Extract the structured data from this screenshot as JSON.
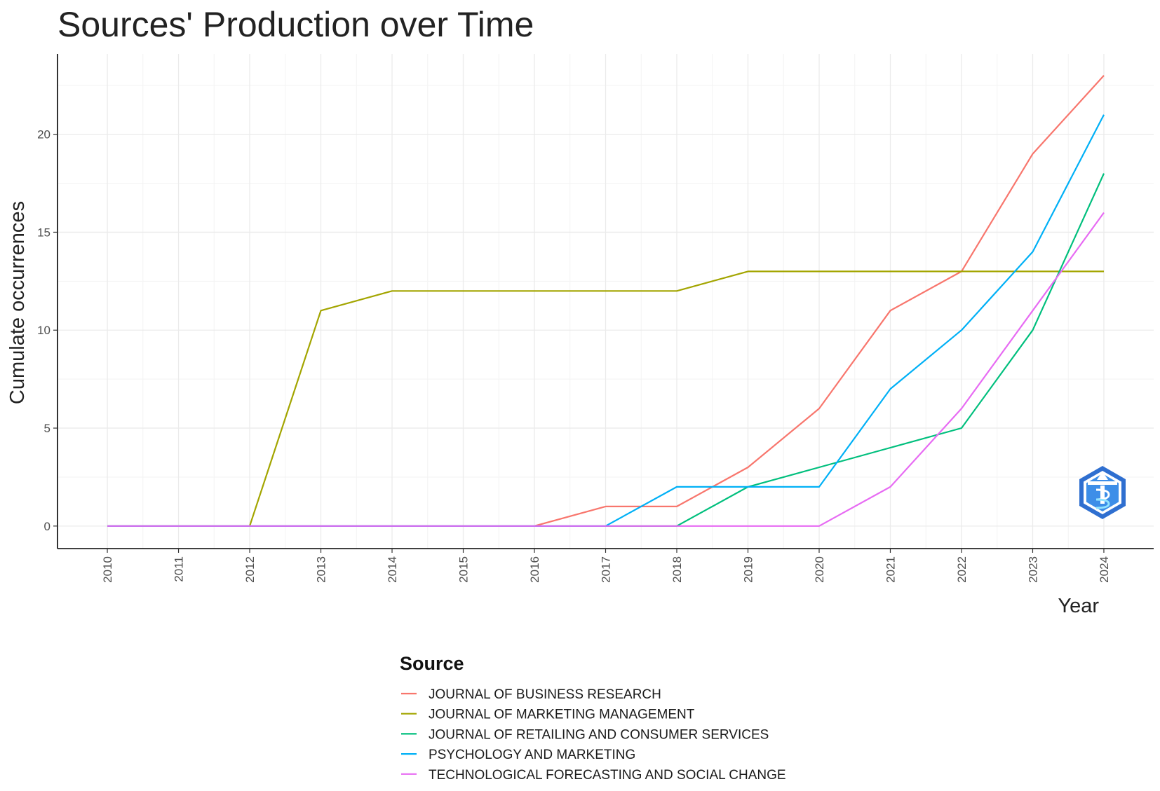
{
  "chart_data": {
    "type": "line",
    "title": "Sources' Production over Time",
    "xlabel": "Year",
    "ylabel": "Cumulate occurrences",
    "x": [
      2010,
      2011,
      2012,
      2013,
      2014,
      2015,
      2016,
      2017,
      2018,
      2019,
      2020,
      2021,
      2022,
      2023,
      2024
    ],
    "x_tick_labels": [
      "2010",
      "2011",
      "2012",
      "2013",
      "2014",
      "2015",
      "2016",
      "2017",
      "2018",
      "2019",
      "2020",
      "2021",
      "2022",
      "2023",
      "2024"
    ],
    "y_ticks": [
      0,
      5,
      10,
      15,
      20
    ],
    "y_tick_labels": [
      "0",
      "5",
      "10",
      "15",
      "20"
    ],
    "xlim": [
      2009.3,
      2024.7
    ],
    "ylim": [
      -1.15,
      24.1
    ],
    "grid": true,
    "legend": {
      "title": "Source",
      "placement": "bottom"
    },
    "series": [
      {
        "name": "JOURNAL OF BUSINESS RESEARCH",
        "color": "#F8766D",
        "values": [
          0,
          0,
          0,
          0,
          0,
          0,
          0,
          1,
          1,
          3,
          6,
          11,
          13,
          19,
          23
        ]
      },
      {
        "name": "JOURNAL OF MARKETING MANAGEMENT",
        "color": "#A3A500",
        "values": [
          0,
          0,
          0,
          11,
          12,
          12,
          12,
          12,
          12,
          13,
          13,
          13,
          13,
          13,
          13
        ]
      },
      {
        "name": "JOURNAL OF RETAILING AND CONSUMER SERVICES",
        "color": "#00BF7D",
        "values": [
          0,
          0,
          0,
          0,
          0,
          0,
          0,
          0,
          0,
          2,
          3,
          4,
          5,
          10,
          18
        ]
      },
      {
        "name": "PSYCHOLOGY AND MARKETING",
        "color": "#00B0F6",
        "values": [
          0,
          0,
          0,
          0,
          0,
          0,
          0,
          0,
          2,
          2,
          2,
          7,
          10,
          14,
          21
        ]
      },
      {
        "name": "TECHNOLOGICAL FORECASTING AND SOCIAL CHANGE",
        "color": "#E76BF3",
        "values": [
          0,
          0,
          0,
          0,
          0,
          0,
          0,
          0,
          0,
          0,
          0,
          2,
          6,
          11,
          16
        ]
      }
    ],
    "logo_icon": "bibliometrix-logo-icon"
  }
}
